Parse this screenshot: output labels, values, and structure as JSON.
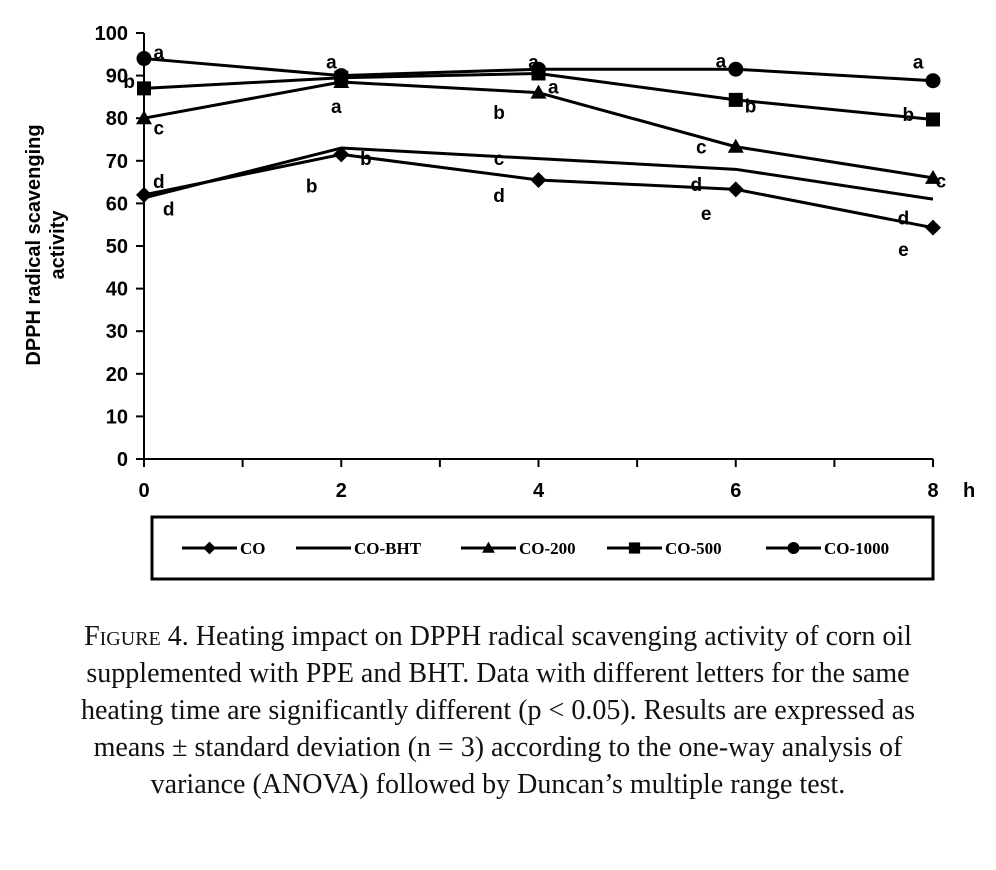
{
  "chart_data": {
    "type": "line",
    "ylabel_line1": "DPPH radical scavenging",
    "ylabel_line2": "activity",
    "xlabel": "h",
    "x": [
      0,
      2,
      4,
      6,
      8
    ],
    "x_tick_labels": [
      "0",
      "2",
      "4",
      "6",
      "8"
    ],
    "ylim": [
      0,
      100
    ],
    "y_ticks": [
      0,
      10,
      20,
      30,
      40,
      50,
      60,
      70,
      80,
      90,
      100
    ],
    "y_tick_labels": [
      "0",
      "10",
      "20",
      "30",
      "40",
      "50",
      "60",
      "70",
      "80",
      "90",
      "100"
    ],
    "grid": false,
    "legend_position": "bottom",
    "series": [
      {
        "name": "CO",
        "marker": "diamond",
        "values": [
          62,
          71.5,
          65.5,
          63.3,
          54.3
        ]
      },
      {
        "name": "CO-BHT",
        "marker": "none",
        "values": [
          61.3,
          73,
          70.5,
          68,
          61
        ]
      },
      {
        "name": "CO-200",
        "marker": "triangle",
        "values": [
          80,
          88.5,
          86,
          73.3,
          66
        ]
      },
      {
        "name": "CO-500",
        "marker": "square",
        "values": [
          87,
          89.5,
          90.5,
          84.3,
          79.7
        ]
      },
      {
        "name": "CO-1000",
        "marker": "circle",
        "values": [
          94,
          90,
          91.5,
          91.5,
          88.8
        ]
      }
    ],
    "annotations": [
      {
        "text": "a",
        "x": 0.15,
        "y": 95.5
      },
      {
        "text": "b",
        "x": -0.15,
        "y": 88.7
      },
      {
        "text": "c",
        "x": 0.15,
        "y": 77.8
      },
      {
        "text": "d",
        "x": 0.15,
        "y": 65.3
      },
      {
        "text": "d",
        "x": 0.25,
        "y": 58.8
      },
      {
        "text": "a",
        "x": 0,
        "y": 94.8
      },
      {
        "text": "a",
        "x": 1.9,
        "y": 93.3
      },
      {
        "text": "a",
        "x": 1.95,
        "y": 82.9
      },
      {
        "text": "b",
        "x": 2.25,
        "y": 70.6
      },
      {
        "text": "b",
        "x": 1.7,
        "y": 64.2
      },
      {
        "text": "a",
        "x": 3.95,
        "y": 93.3
      },
      {
        "text": "a",
        "x": 4.15,
        "y": 87.4
      },
      {
        "text": "b",
        "x": 3.6,
        "y": 81.5
      },
      {
        "text": "c",
        "x": 3.6,
        "y": 70.6
      },
      {
        "text": "d",
        "x": 3.6,
        "y": 62
      },
      {
        "text": "a",
        "x": 5.85,
        "y": 93.6
      },
      {
        "text": "b",
        "x": 6.15,
        "y": 83
      },
      {
        "text": "c",
        "x": 5.65,
        "y": 73.3
      },
      {
        "text": "d",
        "x": 5.6,
        "y": 64.6
      },
      {
        "text": "e",
        "x": 5.7,
        "y": 57.8
      },
      {
        "text": "a",
        "x": 7.85,
        "y": 93.3
      },
      {
        "text": "b",
        "x": 7.75,
        "y": 81
      },
      {
        "text": "c",
        "x": 8.08,
        "y": 65.4
      },
      {
        "text": "d",
        "x": 7.7,
        "y": 56.7
      },
      {
        "text": "e",
        "x": 7.7,
        "y": 49.3
      }
    ]
  },
  "caption": {
    "label": "Figure 4.",
    "text": "Heating impact on DPPH radical scavenging activity of corn oil supplemented  with PPE and BHT. Data with different letters for the same heating time are significantly different (p < 0.05). Results are expressed as means ± standard deviation (n = 3) according to the one-way analysis of variance (ANOVA) followed by Duncan’s multiple range test."
  }
}
